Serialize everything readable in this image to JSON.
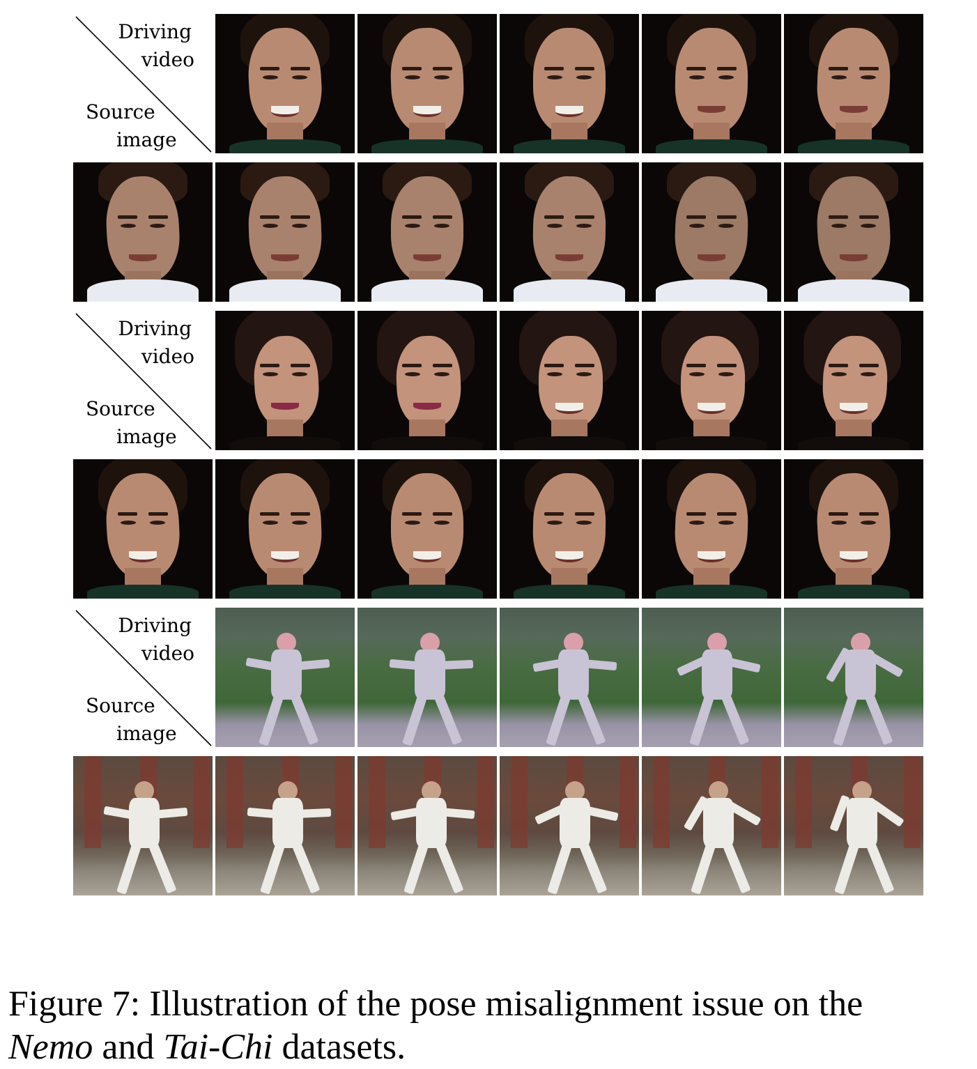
{
  "corner_label": {
    "driving_line1": "Driving",
    "driving_line2": "video",
    "source_line1": "Source",
    "source_line2": "image"
  },
  "groups": [
    {
      "dataset": "Nemo",
      "driving_style": "face-woman",
      "source_style": "face-man"
    },
    {
      "dataset": "Nemo",
      "driving_style": "face-girl",
      "source_style": "face-woman"
    },
    {
      "dataset": "Tai-Chi",
      "driving_style": "taichi-garden",
      "source_style": "taichi-temple"
    }
  ],
  "caption": {
    "prefix": "Figure 7: Illustration of the pose misalignment issue on the",
    "italic1": "Nemo",
    "connector": "and",
    "italic2": "Tai-Chi",
    "suffix": "datasets."
  }
}
